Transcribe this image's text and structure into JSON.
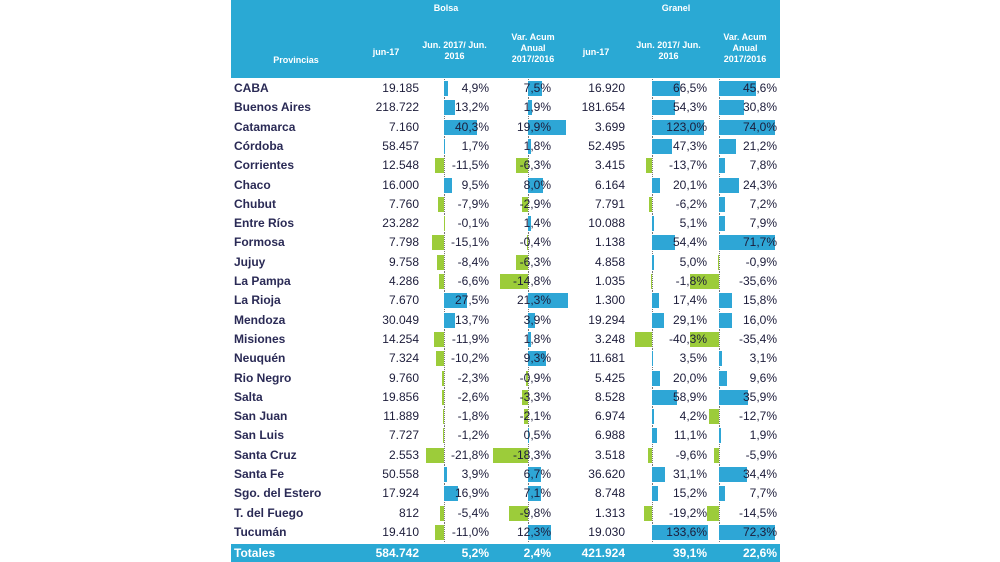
{
  "header": {
    "group_bolsa": "Bolsa",
    "group_granel": "Granel",
    "col_prov": "Provincias",
    "col_jun": "jun-17",
    "col_var": "Jun. 2017/ Jun. 2016",
    "col_acum": "Var. Acum Anual 2017/2016"
  },
  "colors": {
    "header_bg": "#2aa9d4",
    "positive_bar": "#2ea6d6",
    "negative_bar": "#9ccc3a"
  },
  "rows": [
    {
      "prov": "CABA",
      "b_jun": "19.185",
      "b_var": "4,9%",
      "b_acum": "7,5%",
      "g_jun": "16.920",
      "g_var": "66,5%",
      "g_acum": "45,6%",
      "bv": 4.9,
      "ba": 7.5,
      "gv": 66.5,
      "ga": 45.6
    },
    {
      "prov": "Buenos Aires",
      "b_jun": "218.722",
      "b_var": "13,2%",
      "b_acum": "1,9%",
      "g_jun": "181.654",
      "g_var": "54,3%",
      "g_acum": "30,8%",
      "bv": 13.2,
      "ba": 1.9,
      "gv": 54.3,
      "ga": 30.8
    },
    {
      "prov": "Catamarca",
      "b_jun": "7.160",
      "b_var": "40,3%",
      "b_acum": "19,9%",
      "g_jun": "3.699",
      "g_var": "123,0%",
      "g_acum": "74,0%",
      "bv": 40.3,
      "ba": 19.9,
      "gv": 123.0,
      "ga": 74.0
    },
    {
      "prov": "Córdoba",
      "b_jun": "58.457",
      "b_var": "1,7%",
      "b_acum": "1,8%",
      "g_jun": "52.495",
      "g_var": "47,3%",
      "g_acum": "21,2%",
      "bv": 1.7,
      "ba": 1.8,
      "gv": 47.3,
      "ga": 21.2
    },
    {
      "prov": "Corrientes",
      "b_jun": "12.548",
      "b_var": "-11,5%",
      "b_acum": "-6,3%",
      "g_jun": "3.415",
      "g_var": "-13,7%",
      "g_acum": "7,8%",
      "bv": -11.5,
      "ba": -6.3,
      "gv": -13.7,
      "ga": 7.8
    },
    {
      "prov": "Chaco",
      "b_jun": "16.000",
      "b_var": "9,5%",
      "b_acum": "8,0%",
      "g_jun": "6.164",
      "g_var": "20,1%",
      "g_acum": "24,3%",
      "bv": 9.5,
      "ba": 8.0,
      "gv": 20.1,
      "ga": 24.3
    },
    {
      "prov": "Chubut",
      "b_jun": "7.760",
      "b_var": "-7,9%",
      "b_acum": "-2,9%",
      "g_jun": "7.791",
      "g_var": "-6,2%",
      "g_acum": "7,2%",
      "bv": -7.9,
      "ba": -2.9,
      "gv": -6.2,
      "ga": 7.2
    },
    {
      "prov": "Entre Ríos",
      "b_jun": "23.282",
      "b_var": "-0,1%",
      "b_acum": "1,4%",
      "g_jun": "10.088",
      "g_var": "5,1%",
      "g_acum": "7,9%",
      "bv": -0.1,
      "ba": 1.4,
      "gv": 5.1,
      "ga": 7.9
    },
    {
      "prov": "Formosa",
      "b_jun": "7.798",
      "b_var": "-15,1%",
      "b_acum": "-0,4%",
      "g_jun": "1.138",
      "g_var": "54,4%",
      "g_acum": "71,7%",
      "bv": -15.1,
      "ba": -0.4,
      "gv": 54.4,
      "ga": 71.7
    },
    {
      "prov": "Jujuy",
      "b_jun": "9.758",
      "b_var": "-8,4%",
      "b_acum": "-6,3%",
      "g_jun": "4.858",
      "g_var": "5,0%",
      "g_acum": "-0,9%",
      "bv": -8.4,
      "ba": -6.3,
      "gv": 5.0,
      "ga": -0.9
    },
    {
      "prov": "La Pampa",
      "b_jun": "4.286",
      "b_var": "-6,6%",
      "b_acum": "-14,8%",
      "g_jun": "1.035",
      "g_var": "-1,8%",
      "g_acum": "-35,6%",
      "bv": -6.6,
      "ba": -14.8,
      "gv": -1.8,
      "ga": -35.6
    },
    {
      "prov": "La Rioja",
      "b_jun": "7.670",
      "b_var": "27,5%",
      "b_acum": "21,3%",
      "g_jun": "1.300",
      "g_var": "17,4%",
      "g_acum": "15,8%",
      "bv": 27.5,
      "ba": 21.3,
      "gv": 17.4,
      "ga": 15.8
    },
    {
      "prov": "Mendoza",
      "b_jun": "30.049",
      "b_var": "13,7%",
      "b_acum": "3,9%",
      "g_jun": "19.294",
      "g_var": "29,1%",
      "g_acum": "16,0%",
      "bv": 13.7,
      "ba": 3.9,
      "gv": 29.1,
      "ga": 16.0
    },
    {
      "prov": "Misiones",
      "b_jun": "14.254",
      "b_var": "-11,9%",
      "b_acum": "1,8%",
      "g_jun": "3.248",
      "g_var": "-40,3%",
      "g_acum": "-35,4%",
      "bv": -11.9,
      "ba": 1.8,
      "gv": -40.3,
      "ga": -35.4
    },
    {
      "prov": "Neuquén",
      "b_jun": "7.324",
      "b_var": "-10,2%",
      "b_acum": "9,3%",
      "g_jun": "11.681",
      "g_var": "3,5%",
      "g_acum": "3,1%",
      "bv": -10.2,
      "ba": 9.3,
      "gv": 3.5,
      "ga": 3.1
    },
    {
      "prov": "Rio Negro",
      "b_jun": "9.760",
      "b_var": "-2,3%",
      "b_acum": "-0,9%",
      "g_jun": "5.425",
      "g_var": "20,0%",
      "g_acum": "9,6%",
      "bv": -2.3,
      "ba": -0.9,
      "gv": 20.0,
      "ga": 9.6
    },
    {
      "prov": "Salta",
      "b_jun": "19.856",
      "b_var": "-2,6%",
      "b_acum": "-3,3%",
      "g_jun": "8.528",
      "g_var": "58,9%",
      "g_acum": "35,9%",
      "bv": -2.6,
      "ba": -3.3,
      "gv": 58.9,
      "ga": 35.9
    },
    {
      "prov": "San Juan",
      "b_jun": "11.889",
      "b_var": "-1,8%",
      "b_acum": "-2,1%",
      "g_jun": "6.974",
      "g_var": "4,2%",
      "g_acum": "-12,7%",
      "bv": -1.8,
      "ba": -2.1,
      "gv": 4.2,
      "ga": -12.7
    },
    {
      "prov": "San Luis",
      "b_jun": "7.727",
      "b_var": "-1,2%",
      "b_acum": "0,5%",
      "g_jun": "6.988",
      "g_var": "11,1%",
      "g_acum": "1,9%",
      "bv": -1.2,
      "ba": 0.5,
      "gv": 11.1,
      "ga": 1.9
    },
    {
      "prov": "Santa Cruz",
      "b_jun": "2.553",
      "b_var": "-21,8%",
      "b_acum": "-18,3%",
      "g_jun": "3.518",
      "g_var": "-9,6%",
      "g_acum": "-5,9%",
      "bv": -21.8,
      "ba": -18.3,
      "gv": -9.6,
      "ga": -5.9
    },
    {
      "prov": "Santa Fe",
      "b_jun": "50.558",
      "b_var": "3,9%",
      "b_acum": "6,7%",
      "g_jun": "36.620",
      "g_var": "31,1%",
      "g_acum": "34,4%",
      "bv": 3.9,
      "ba": 6.7,
      "gv": 31.1,
      "ga": 34.4
    },
    {
      "prov": "Sgo. del Estero",
      "b_jun": "17.924",
      "b_var": "16,9%",
      "b_acum": "7,1%",
      "g_jun": "8.748",
      "g_var": "15,2%",
      "g_acum": "7,7%",
      "bv": 16.9,
      "ba": 7.1,
      "gv": 15.2,
      "ga": 7.7
    },
    {
      "prov": "T. del Fuego",
      "b_jun": "812",
      "b_var": "-5,4%",
      "b_acum": "-9,8%",
      "g_jun": "1.313",
      "g_var": "-19,2%",
      "g_acum": "-14,5%",
      "bv": -5.4,
      "ba": -9.8,
      "gv": -19.2,
      "ga": -14.5
    },
    {
      "prov": "Tucumán",
      "b_jun": "19.410",
      "b_var": "-11,0%",
      "b_acum": "12,3%",
      "g_jun": "19.030",
      "g_var": "133,6%",
      "g_acum": "72,3%",
      "bv": -11.0,
      "ba": 12.3,
      "gv": 133.6,
      "ga": 72.3
    }
  ],
  "totals": {
    "label": "Totales",
    "b_jun": "584.742",
    "b_var": "5,2%",
    "b_acum": "2,4%",
    "g_jun": "421.924",
    "g_var": "39,1%",
    "g_acum": "22,6%"
  }
}
